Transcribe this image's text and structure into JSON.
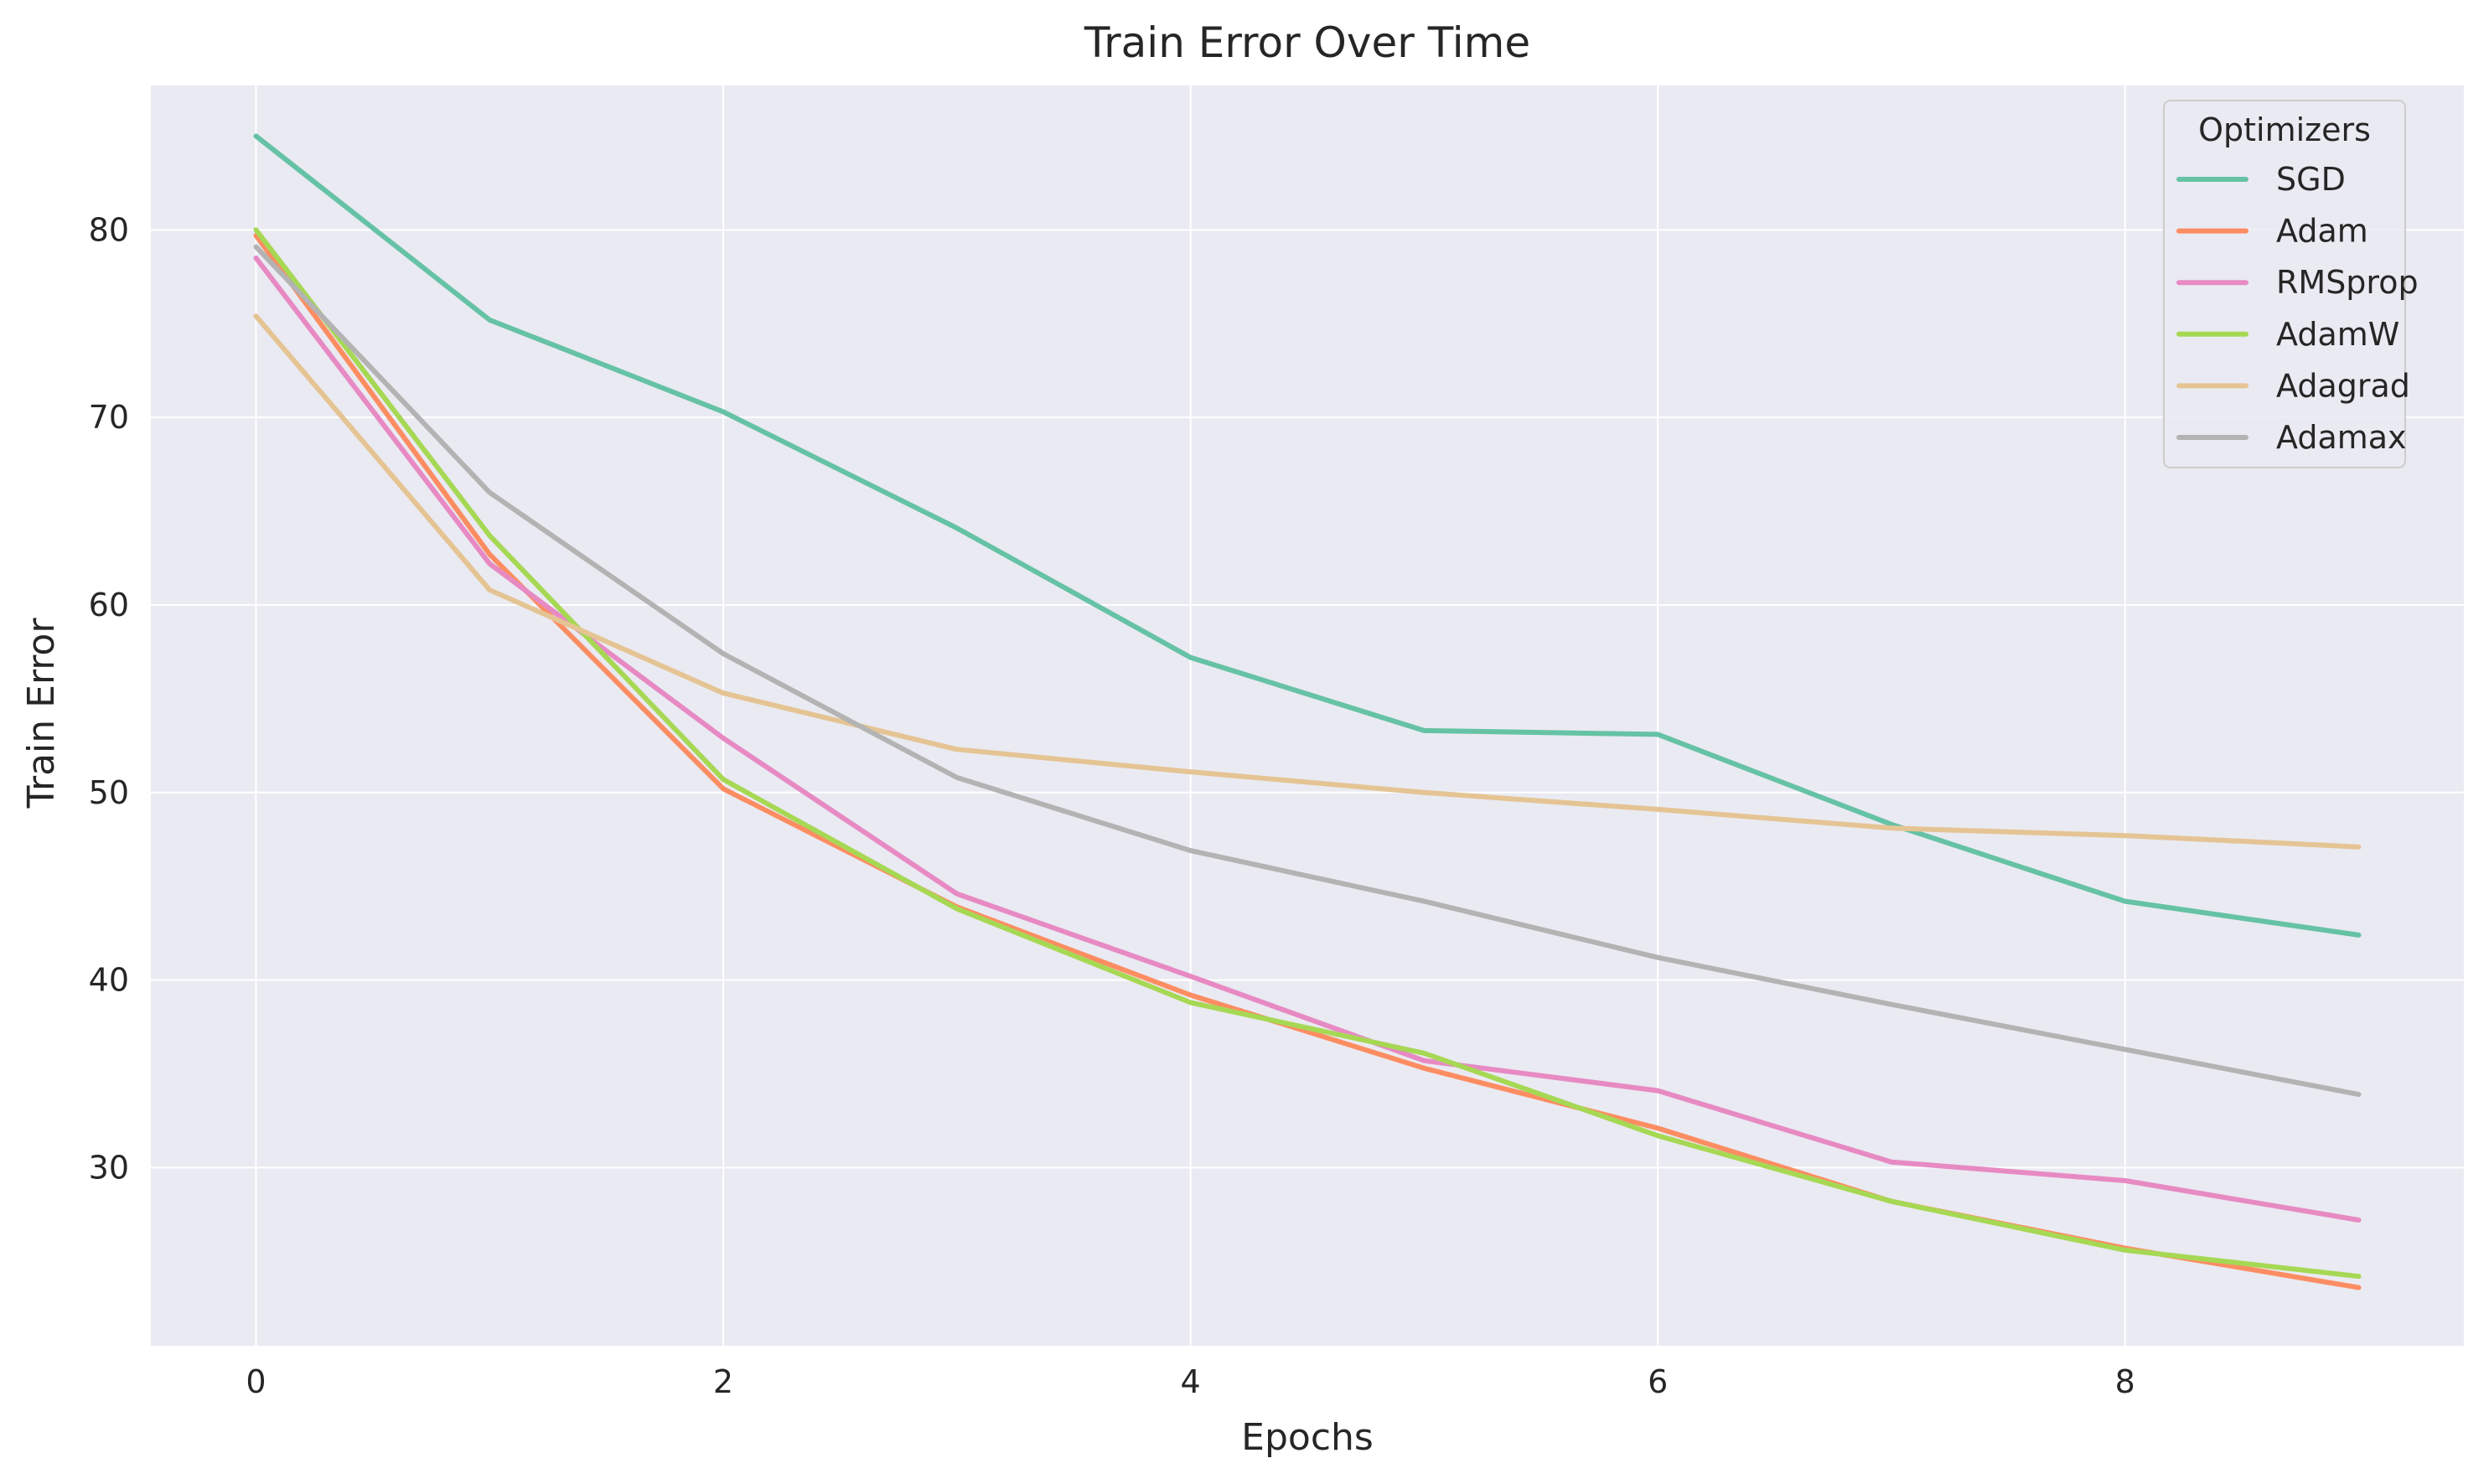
{
  "chart_data": {
    "type": "line",
    "title": "Train Error Over Time",
    "xlabel": "Epochs",
    "ylabel": "Train Error",
    "x": [
      0,
      1,
      2,
      3,
      4,
      5,
      6,
      7,
      8,
      9
    ],
    "xlim": [
      -0.45,
      9.45
    ],
    "ylim": [
      20.5,
      87.7
    ],
    "xticks": [
      0,
      2,
      4,
      6,
      8
    ],
    "yticks": [
      30,
      40,
      50,
      60,
      70,
      80
    ],
    "grid": true,
    "legend": {
      "title": "Optimizers",
      "placement": "top-right"
    },
    "series": [
      {
        "name": "SGD",
        "color": "#66c2a5",
        "values": [
          85.0,
          75.2,
          70.3,
          64.1,
          57.2,
          53.3,
          53.1,
          48.3,
          44.2,
          42.4
        ]
      },
      {
        "name": "Adam",
        "color": "#fc8d62",
        "values": [
          79.7,
          62.7,
          50.2,
          43.9,
          39.2,
          35.3,
          32.1,
          28.2,
          25.7,
          23.6
        ]
      },
      {
        "name": "RMSprop",
        "color": "#e78ac3",
        "values": [
          78.5,
          62.2,
          52.9,
          44.6,
          40.2,
          35.7,
          34.1,
          30.3,
          29.3,
          27.2
        ]
      },
      {
        "name": "AdamW",
        "color": "#a6d854",
        "values": [
          80.0,
          63.7,
          50.7,
          43.8,
          38.8,
          36.1,
          31.7,
          28.2,
          25.6,
          24.2
        ]
      },
      {
        "name": "Adagrad",
        "color": "#e5c494",
        "values": [
          75.4,
          60.8,
          55.3,
          52.3,
          51.1,
          50.0,
          49.1,
          48.1,
          47.7,
          47.1
        ]
      },
      {
        "name": "Adamax",
        "color": "#b3b3b3",
        "values": [
          79.1,
          66.0,
          57.4,
          50.8,
          46.9,
          44.2,
          41.2,
          38.7,
          36.3,
          33.9
        ]
      }
    ]
  }
}
